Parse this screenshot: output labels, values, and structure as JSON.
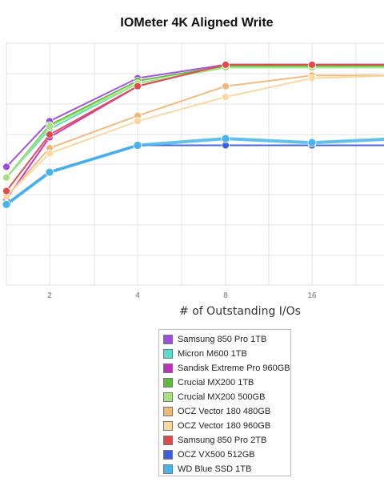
{
  "chart_data": {
    "type": "line",
    "title": "IOMeter 4K Aligned Write",
    "xlabel": "# of Outstanding I/Os",
    "ylabel": "",
    "x": [
      1,
      2,
      4,
      8,
      16,
      32
    ],
    "x_tick_labels": [
      "2",
      "4",
      "8",
      "16"
    ],
    "ylim": [
      0,
      9
    ],
    "grid": true,
    "legend_position": "bottom-center",
    "series": [
      {
        "name": "Samsung 850 Pro 1TB",
        "color": "#9b4ddb",
        "values": [
          4.4,
          6.1,
          7.7,
          8.2,
          8.2,
          8.2
        ]
      },
      {
        "name": "Micron M600 1TB",
        "color": "#5bdbd0",
        "values": [
          4.0,
          5.8,
          7.5,
          8.1,
          8.1,
          8.1
        ]
      },
      {
        "name": "Sandisk Extreme Pro 960GB",
        "color": "#c030c0",
        "values": [
          3.2,
          5.5,
          7.4,
          8.2,
          8.2,
          8.2
        ]
      },
      {
        "name": "Crucial MX200 1TB",
        "color": "#5fb93b",
        "values": [
          4.0,
          5.95,
          7.6,
          8.15,
          8.15,
          8.15
        ]
      },
      {
        "name": "Crucial MX200 500GB",
        "color": "#a6e37e",
        "values": [
          4.0,
          5.9,
          7.5,
          8.1,
          8.1,
          8.1
        ]
      },
      {
        "name": "OCZ Vector 180 480GB",
        "color": "#eeb87a",
        "values": [
          3.3,
          5.1,
          6.3,
          7.4,
          7.8,
          7.8
        ]
      },
      {
        "name": "OCZ Vector 180 960GB",
        "color": "#f8d7a1",
        "values": [
          3.3,
          4.9,
          6.1,
          7.0,
          7.7,
          7.8
        ]
      },
      {
        "name": "Samsung 850 Pro 2TB",
        "color": "#e04a4a",
        "values": [
          3.5,
          5.6,
          7.4,
          8.2,
          8.2,
          8.2
        ]
      },
      {
        "name": "OCZ VX500 512GB",
        "color": "#3c5fe0",
        "values": [
          3.0,
          4.2,
          5.2,
          5.2,
          5.2,
          5.2
        ]
      },
      {
        "name": "WD Blue SSD 1TB",
        "color": "#48b4e8",
        "values": [
          3.0,
          4.2,
          5.2,
          5.45,
          5.3,
          5.45
        ]
      }
    ]
  }
}
